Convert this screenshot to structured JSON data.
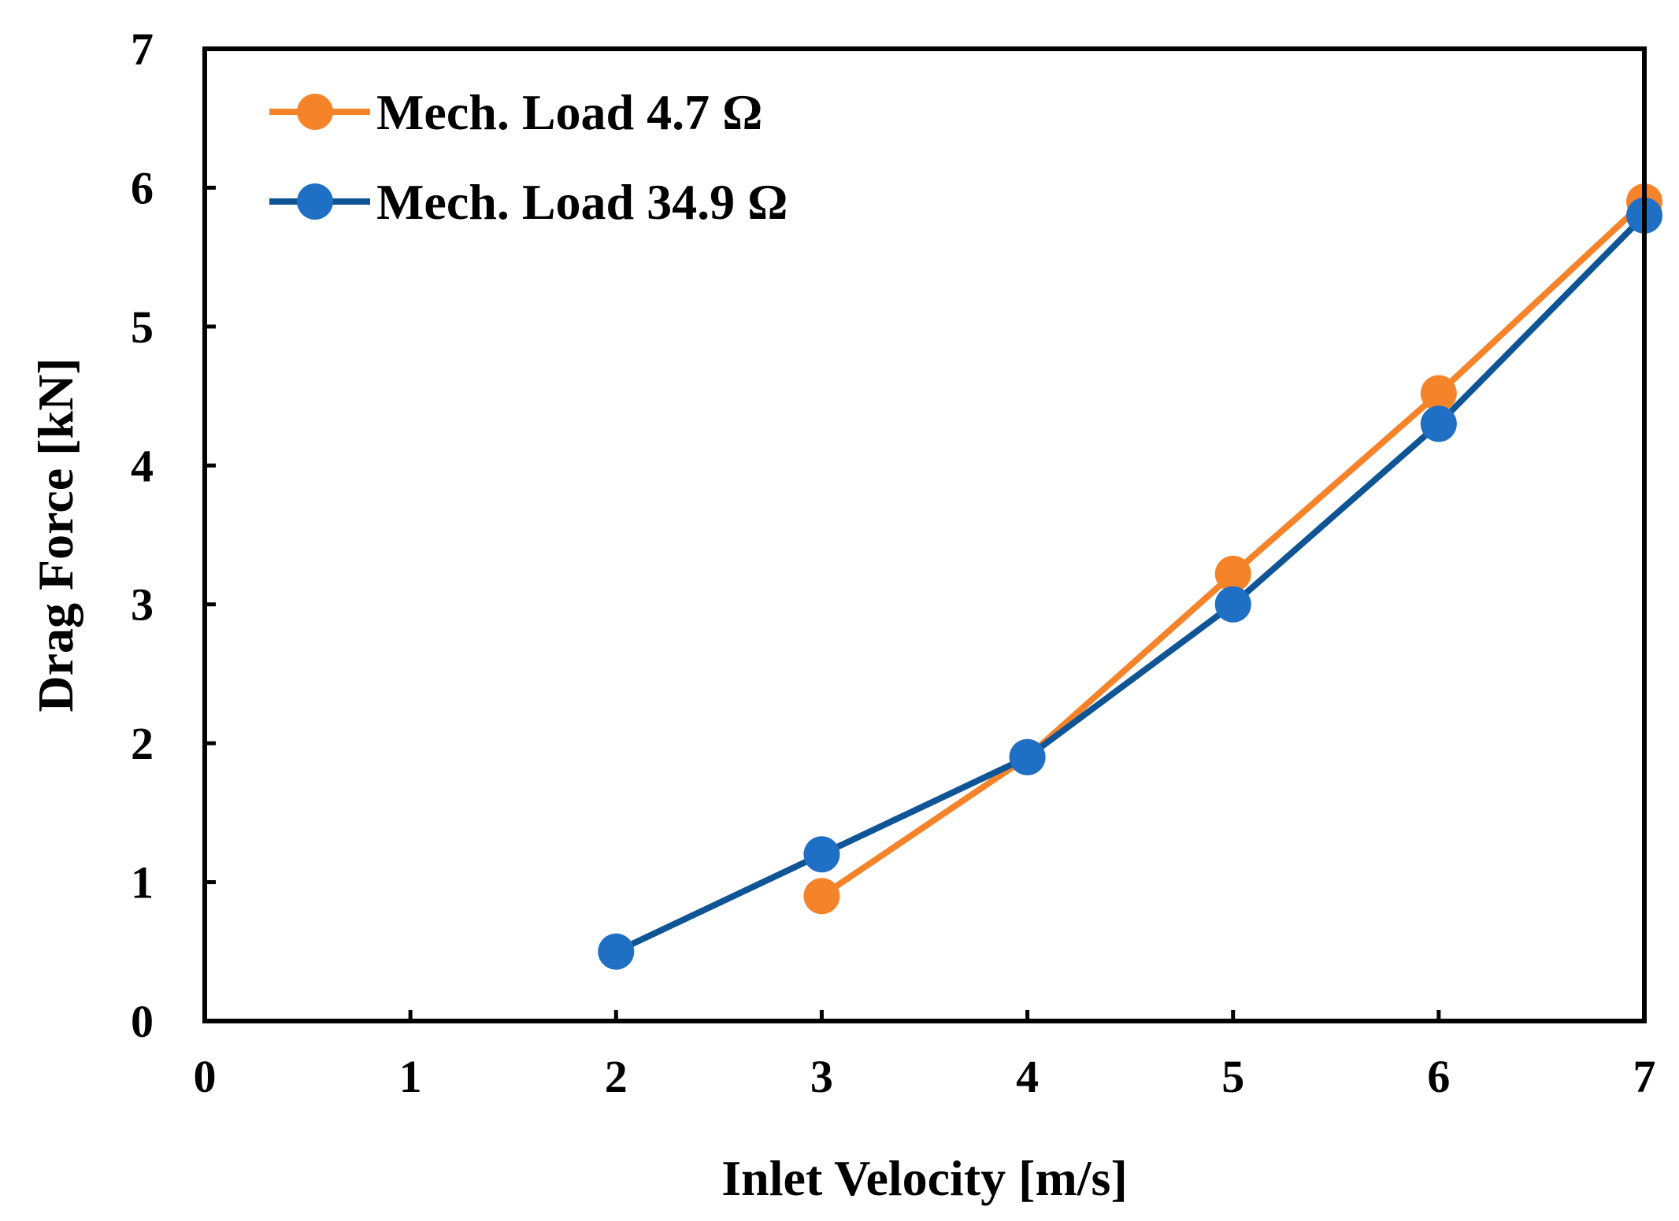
{
  "chart_data": {
    "type": "line",
    "title": "",
    "xlabel": "Inlet Velocity [m/s]",
    "ylabel": "Drag Force [kN]",
    "xlim": [
      0,
      7
    ],
    "ylim": [
      0,
      7
    ],
    "xticks": [
      0,
      1,
      2,
      3,
      4,
      5,
      6,
      7
    ],
    "yticks": [
      0,
      1,
      2,
      3,
      4,
      5,
      6,
      7
    ],
    "grid": false,
    "legend_position": "top-left",
    "series": [
      {
        "name": "Mech. Load 4.7 Ω",
        "color": "#F5832A",
        "x": [
          3,
          4,
          5,
          6,
          7
        ],
        "y": [
          0.9,
          1.9,
          3.22,
          4.52,
          5.9
        ]
      },
      {
        "name": "Mech. Load 34.9 Ω",
        "color": "#1F6FC5",
        "line_color": "#0F5596",
        "x": [
          2,
          3,
          4,
          5,
          6,
          7
        ],
        "y": [
          0.5,
          1.2,
          1.9,
          3.0,
          4.3,
          5.8
        ]
      }
    ]
  }
}
